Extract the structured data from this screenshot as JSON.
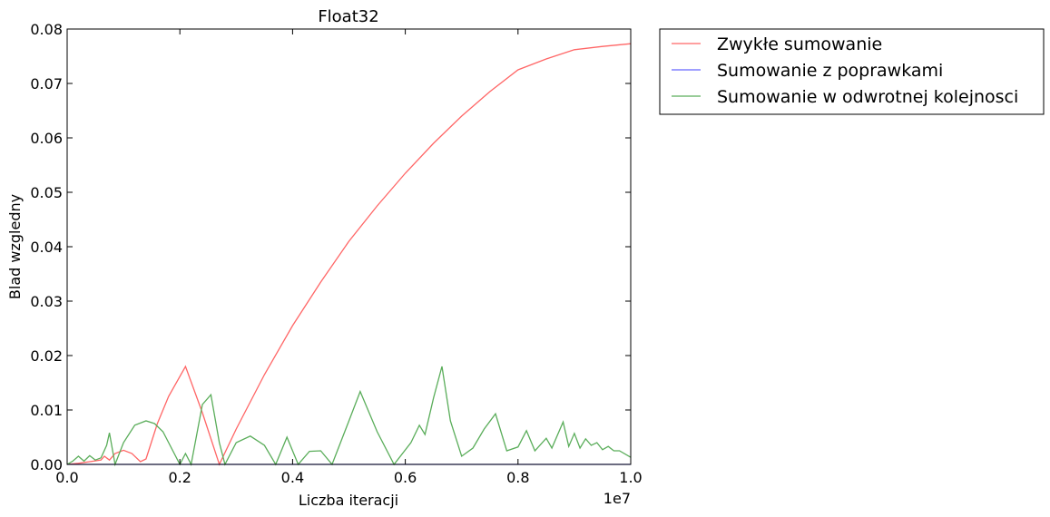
{
  "chart_data": {
    "type": "line",
    "title": "Float32",
    "xlabel": "Liczba iteracji",
    "ylabel": "Blad wzgledny",
    "x_offset_label": "1e7",
    "xlim": [
      0,
      1.0
    ],
    "ylim": [
      0,
      0.08
    ],
    "x_ticks": [
      0.0,
      0.2,
      0.4,
      0.6,
      0.8,
      1.0
    ],
    "x_tick_labels": [
      "0.0",
      "0.2",
      "0.4",
      "0.6",
      "0.8",
      "1.0"
    ],
    "y_ticks": [
      0.0,
      0.01,
      0.02,
      0.03,
      0.04,
      0.05,
      0.06,
      0.07,
      0.08
    ],
    "y_tick_labels": [
      "0.00",
      "0.01",
      "0.02",
      "0.03",
      "0.04",
      "0.05",
      "0.06",
      "0.07",
      "0.08"
    ],
    "grid": false,
    "legend": "outside-top-right",
    "series": [
      {
        "name": "Zwykłe sumowanie",
        "color": "#ff6666",
        "x": [
          0,
          0.02,
          0.04,
          0.06,
          0.066,
          0.075,
          0.085,
          0.1,
          0.115,
          0.13,
          0.14,
          0.16,
          0.18,
          0.21,
          0.24,
          0.27,
          0.3,
          0.35,
          0.4,
          0.45,
          0.5,
          0.55,
          0.6,
          0.65,
          0.7,
          0.75,
          0.8,
          0.85,
          0.9,
          0.95,
          1.0
        ],
        "y": [
          0,
          0.0002,
          0.0005,
          0.0008,
          0.0015,
          0.0008,
          0.002,
          0.0026,
          0.002,
          0.0005,
          0.001,
          0.0075,
          0.0125,
          0.018,
          0.0095,
          0.0,
          0.0065,
          0.0165,
          0.0255,
          0.0335,
          0.041,
          0.0475,
          0.0535,
          0.059,
          0.064,
          0.0685,
          0.0725,
          0.0745,
          0.0762,
          0.0768,
          0.0773
        ]
      },
      {
        "name": "Sumowanie z poprawkami",
        "color": "#6666ff",
        "x": [
          0,
          1.0
        ],
        "y": [
          0,
          0
        ]
      },
      {
        "name": "Sumowanie w odwrotnej kolejnosci",
        "color": "#5aad5a",
        "x": [
          0,
          0.01,
          0.02,
          0.03,
          0.04,
          0.05,
          0.06,
          0.07,
          0.075,
          0.085,
          0.1,
          0.12,
          0.14,
          0.155,
          0.17,
          0.19,
          0.2,
          0.21,
          0.22,
          0.23,
          0.24,
          0.255,
          0.27,
          0.28,
          0.3,
          0.325,
          0.35,
          0.37,
          0.39,
          0.41,
          0.43,
          0.45,
          0.47,
          0.5,
          0.52,
          0.55,
          0.58,
          0.61,
          0.625,
          0.635,
          0.65,
          0.665,
          0.68,
          0.7,
          0.72,
          0.74,
          0.76,
          0.78,
          0.8,
          0.815,
          0.83,
          0.85,
          0.86,
          0.88,
          0.89,
          0.9,
          0.91,
          0.92,
          0.93,
          0.94,
          0.95,
          0.96,
          0.97,
          0.98,
          1.0
        ],
        "y": [
          0,
          0.0006,
          0.0015,
          0.0006,
          0.0016,
          0.0008,
          0.0012,
          0.0035,
          0.0058,
          0.0,
          0.004,
          0.0072,
          0.008,
          0.0075,
          0.006,
          0.002,
          0.0,
          0.002,
          0.0,
          0.0055,
          0.011,
          0.0128,
          0.004,
          0.0,
          0.004,
          0.0052,
          0.0035,
          0.0,
          0.005,
          0.0,
          0.0024,
          0.0025,
          0.0,
          0.008,
          0.0134,
          0.006,
          0.0,
          0.004,
          0.0072,
          0.0055,
          0.0122,
          0.018,
          0.008,
          0.0015,
          0.003,
          0.0065,
          0.0093,
          0.0025,
          0.0032,
          0.0062,
          0.0025,
          0.0048,
          0.003,
          0.0078,
          0.0033,
          0.0057,
          0.003,
          0.0047,
          0.0035,
          0.004,
          0.0027,
          0.0033,
          0.0025,
          0.0025,
          0.0013
        ]
      }
    ]
  }
}
